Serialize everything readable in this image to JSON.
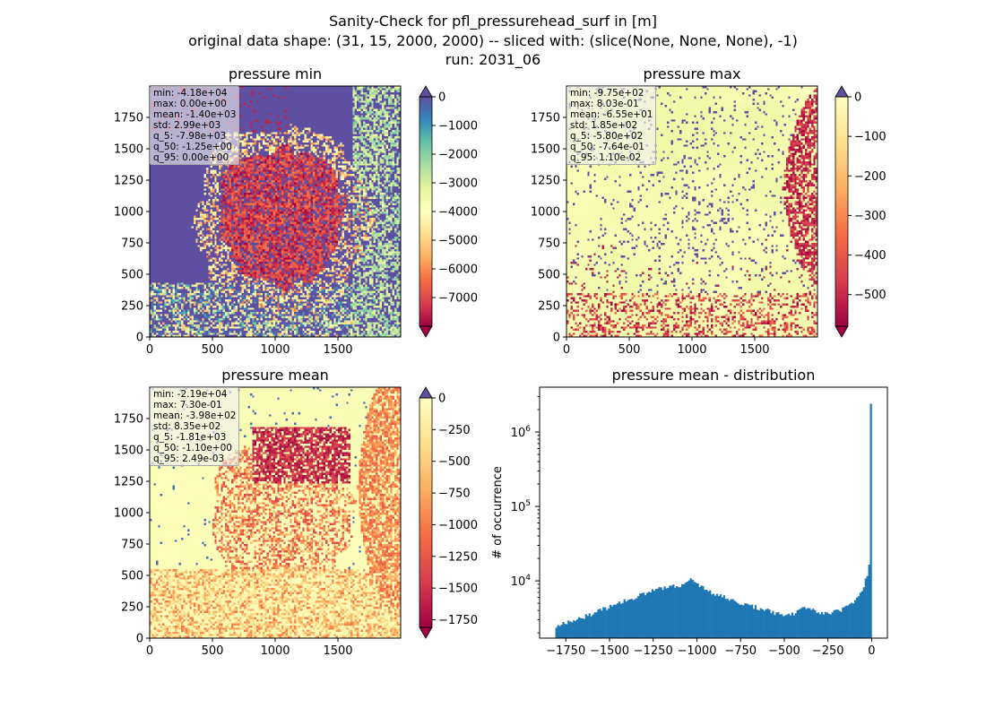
{
  "suptitle": {
    "line1": "Sanity-Check for pfl_pressurehead_surf in [m]",
    "line2": "original data shape: (31, 15, 2000, 2000) -- sliced with: (slice(None, None, None), -1)",
    "line3": "run: 2031_06"
  },
  "colormap": "Spectral",
  "chart_data": [
    {
      "type": "heatmap",
      "title": "pressure min",
      "xlim": [
        0,
        2000
      ],
      "ylim": [
        0,
        2000
      ],
      "x_ticks": [
        "0",
        "500",
        "1000",
        "1500"
      ],
      "y_ticks": [
        "0",
        "250",
        "500",
        "750",
        "1000",
        "1250",
        "1500",
        "1750"
      ],
      "colorbar": {
        "range": [
          -8000,
          0
        ],
        "ticks": [
          "0",
          "−1000",
          "−2000",
          "−3000",
          "−4000",
          "−5000",
          "−6000",
          "−7000"
        ],
        "extend": "both"
      },
      "stats": [
        "min: -4.18e+04",
        "max: 0.00e+00",
        "mean: -1.40e+03",
        "std: 2.99e+03",
        "q_5: -7.98e+03",
        "q_50: -1.25e+00",
        "q_95: 0.00e+00"
      ]
    },
    {
      "type": "heatmap",
      "title": "pressure max",
      "xlim": [
        0,
        2000
      ],
      "ylim": [
        0,
        2000
      ],
      "x_ticks": [
        "0",
        "500",
        "1000",
        "1500"
      ],
      "y_ticks": [
        "0",
        "250",
        "500",
        "750",
        "1000",
        "1250",
        "1500",
        "1750"
      ],
      "colorbar": {
        "range": [
          -580,
          0
        ],
        "ticks": [
          "0",
          "−100",
          "−200",
          "−300",
          "−400",
          "−500"
        ],
        "extend": "both"
      },
      "stats": [
        "min: -9.75e+02",
        "max: 8.03e-01",
        "mean: -6.55e+01",
        "std: 1.85e+02",
        "q_5: -5.80e+02",
        "q_50: -7.64e-01",
        "q_95: 1.10e-02"
      ]
    },
    {
      "type": "heatmap",
      "title": "pressure mean",
      "xlim": [
        0,
        2000
      ],
      "ylim": [
        0,
        2000
      ],
      "x_ticks": [
        "0",
        "500",
        "1000",
        "1500"
      ],
      "y_ticks": [
        "0",
        "250",
        "500",
        "750",
        "1000",
        "1250",
        "1500",
        "1750"
      ],
      "colorbar": {
        "range": [
          -1810,
          0
        ],
        "ticks": [
          "0",
          "−250",
          "−500",
          "−750",
          "−1000",
          "−1250",
          "−1500",
          "−1750"
        ],
        "extend": "both"
      },
      "stats": [
        "min: -2.19e+04",
        "max: 7.30e-01",
        "mean: -3.98e+02",
        "std: 8.35e+02",
        "q_5: -1.81e+03",
        "q_50: -1.10e+00",
        "q_95: 2.49e-03"
      ]
    },
    {
      "type": "histogram",
      "title": "pressure mean - distribution",
      "ylabel": "# of occurrence",
      "yscale": "log",
      "xlim": [
        -1900,
        90
      ],
      "ylim": [
        1700,
        4000000
      ],
      "x_ticks": [
        "−1750",
        "−1500",
        "−1250",
        "−1000",
        "−750",
        "−500",
        "−250",
        "0"
      ],
      "x_tick_values": [
        -1750,
        -1500,
        -1250,
        -1000,
        -750,
        -500,
        -250,
        0
      ],
      "y_ticks": [
        "10^4",
        "10^5",
        "10^6"
      ],
      "y_tick_values": [
        10000,
        100000,
        1000000
      ],
      "bin_range": [
        -1810,
        0
      ],
      "bin_width": 10,
      "color": "#1f77b4",
      "profile": [
        [
          -1810,
          2400
        ],
        [
          -1750,
          2700
        ],
        [
          -1600,
          3600
        ],
        [
          -1500,
          4500
        ],
        [
          -1400,
          5500
        ],
        [
          -1300,
          6800
        ],
        [
          -1200,
          8000
        ],
        [
          -1100,
          8700
        ],
        [
          -1050,
          9800
        ],
        [
          -1030,
          10400
        ],
        [
          -1000,
          9200
        ],
        [
          -950,
          7600
        ],
        [
          -900,
          6800
        ],
        [
          -800,
          5500
        ],
        [
          -700,
          4700
        ],
        [
          -600,
          4000
        ],
        [
          -520,
          3500
        ],
        [
          -460,
          3500
        ],
        [
          -420,
          4000
        ],
        [
          -370,
          4500
        ],
        [
          -320,
          4000
        ],
        [
          -280,
          3600
        ],
        [
          -250,
          3600
        ],
        [
          -200,
          3900
        ],
        [
          -150,
          4300
        ],
        [
          -100,
          5400
        ],
        [
          -60,
          7000
        ],
        [
          -40,
          9500
        ],
        [
          -20,
          13000
        ],
        [
          -10,
          19000
        ],
        [
          0,
          2400000
        ]
      ]
    }
  ]
}
